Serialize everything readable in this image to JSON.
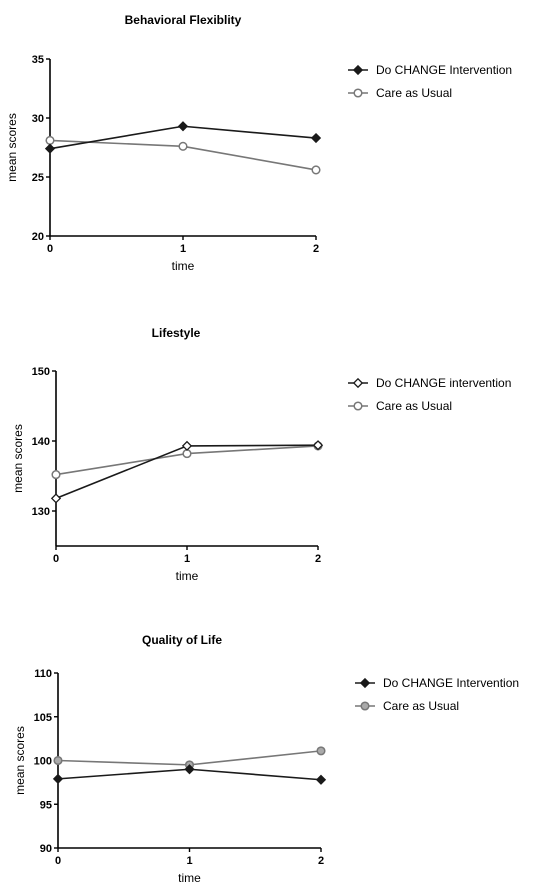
{
  "chart_data": [
    {
      "type": "line",
      "title": "Behavioral Flexiblity",
      "xlabel": "time",
      "ylabel": "mean scores",
      "x": [
        0,
        1,
        2
      ],
      "x_ticks": [
        "0",
        "1",
        "2"
      ],
      "ylim": [
        20,
        35
      ],
      "y_ticks": [
        "20",
        "25",
        "30",
        "35"
      ],
      "legend_position": "right",
      "series": [
        {
          "name": "Do CHANGE Intervention",
          "values": [
            27.4,
            29.3,
            28.3
          ],
          "marker": "diamond",
          "marker_fill": "#1a1a1a",
          "color": "#1a1a1a"
        },
        {
          "name": "Care as Usual",
          "values": [
            28.1,
            27.6,
            25.6
          ],
          "marker": "circle",
          "marker_fill": "#ffffff",
          "color": "#777777"
        }
      ]
    },
    {
      "type": "line",
      "title": "Lifestyle",
      "xlabel": "time",
      "ylabel": "mean scores",
      "x": [
        0,
        1,
        2
      ],
      "x_ticks": [
        "0",
        "1",
        "2"
      ],
      "ylim": [
        125,
        150
      ],
      "y_ticks": [
        "130",
        "140",
        "150"
      ],
      "legend_position": "right",
      "series": [
        {
          "name": "Do CHANGE intervention",
          "values": [
            131.8,
            139.3,
            139.4
          ],
          "marker": "diamond",
          "marker_fill": "#ffffff",
          "color": "#1a1a1a"
        },
        {
          "name": "Care as Usual",
          "values": [
            135.2,
            138.2,
            139.3
          ],
          "marker": "circle",
          "marker_fill": "#ffffff",
          "color": "#777777"
        }
      ]
    },
    {
      "type": "line",
      "title": "Quality of Life",
      "xlabel": "time",
      "ylabel": "mean scores",
      "x": [
        0,
        1,
        2
      ],
      "x_ticks": [
        "0",
        "1",
        "2"
      ],
      "ylim": [
        90,
        110
      ],
      "y_ticks": [
        "90",
        "95",
        "100",
        "105",
        "110"
      ],
      "legend_position": "right",
      "series": [
        {
          "name": "Do CHANGE Intervention",
          "values": [
            97.9,
            99.0,
            97.8
          ],
          "marker": "diamond",
          "marker_fill": "#1a1a1a",
          "color": "#1a1a1a"
        },
        {
          "name": "Care as Usual",
          "values": [
            100.0,
            99.5,
            101.1
          ],
          "marker": "circle",
          "marker_fill": "#aaaaaa",
          "color": "#777777"
        }
      ]
    }
  ]
}
